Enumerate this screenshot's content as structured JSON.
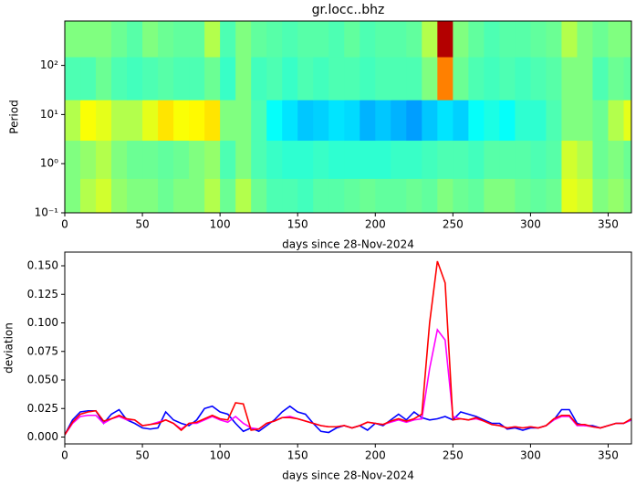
{
  "chart_data": [
    {
      "type": "heatmap",
      "title": "gr.locc..bhz",
      "x_label": "days since 28-Nov-2024",
      "y_label": "Period",
      "colormap": "jet",
      "y_log": true,
      "x_edges": [
        0,
        10,
        20,
        30,
        40,
        50,
        60,
        70,
        80,
        90,
        100,
        110,
        120,
        130,
        140,
        150,
        160,
        170,
        180,
        190,
        200,
        210,
        220,
        230,
        240,
        250,
        260,
        270,
        280,
        290,
        300,
        310,
        320,
        330,
        340,
        350,
        360,
        365
      ],
      "y_edges": [
        0.1,
        0.5,
        3,
        20,
        150,
        800
      ],
      "z": [
        [
          0.5,
          0.55,
          0.58,
          0.52,
          0.5,
          0.5,
          0.48,
          0.5,
          0.5,
          0.55,
          0.48,
          0.55,
          0.48,
          0.45,
          0.45,
          0.44,
          0.46,
          0.46,
          0.47,
          0.48,
          0.47,
          0.47,
          0.48,
          0.47,
          0.5,
          0.48,
          0.47,
          0.5,
          0.5,
          0.48,
          0.47,
          0.48,
          0.6,
          0.58,
          0.5,
          0.52,
          0.5
        ],
        [
          0.5,
          0.52,
          0.55,
          0.5,
          0.48,
          0.48,
          0.47,
          0.48,
          0.5,
          0.52,
          0.45,
          0.5,
          0.45,
          0.43,
          0.42,
          0.42,
          0.43,
          0.42,
          0.42,
          0.42,
          0.42,
          0.43,
          0.43,
          0.44,
          0.45,
          0.45,
          0.44,
          0.46,
          0.46,
          0.46,
          0.45,
          0.46,
          0.58,
          0.55,
          0.48,
          0.5,
          0.48
        ],
        [
          0.55,
          0.62,
          0.6,
          0.55,
          0.55,
          0.6,
          0.65,
          0.62,
          0.63,
          0.65,
          0.5,
          0.5,
          0.45,
          0.38,
          0.35,
          0.32,
          0.33,
          0.35,
          0.34,
          0.3,
          0.32,
          0.3,
          0.28,
          0.32,
          0.35,
          0.33,
          0.38,
          0.4,
          0.38,
          0.42,
          0.42,
          0.45,
          0.5,
          0.5,
          0.48,
          0.55,
          0.6
        ],
        [
          0.45,
          0.45,
          0.48,
          0.45,
          0.44,
          0.45,
          0.46,
          0.45,
          0.45,
          0.48,
          0.43,
          0.5,
          0.44,
          0.45,
          0.43,
          0.45,
          0.44,
          0.45,
          0.45,
          0.44,
          0.45,
          0.45,
          0.45,
          0.5,
          0.75,
          0.48,
          0.45,
          0.44,
          0.45,
          0.44,
          0.45,
          0.46,
          0.5,
          0.5,
          0.45,
          0.48,
          0.47
        ],
        [
          0.5,
          0.5,
          0.5,
          0.48,
          0.46,
          0.5,
          0.48,
          0.47,
          0.47,
          0.55,
          0.45,
          0.5,
          0.47,
          0.46,
          0.45,
          0.46,
          0.46,
          0.45,
          0.47,
          0.45,
          0.46,
          0.46,
          0.47,
          0.55,
          0.95,
          0.5,
          0.47,
          0.45,
          0.46,
          0.46,
          0.47,
          0.48,
          0.55,
          0.5,
          0.48,
          0.5,
          0.5
        ]
      ],
      "xlim": [
        0,
        365
      ],
      "xticks": [
        0,
        50,
        100,
        150,
        200,
        250,
        300,
        350
      ],
      "ylim": [
        0.1,
        800
      ],
      "yticks": [
        {
          "value": 0.1,
          "label": "10⁻¹"
        },
        {
          "value": 1,
          "label": "10⁰"
        },
        {
          "value": 10,
          "label": "10¹"
        },
        {
          "value": 100,
          "label": "10²"
        }
      ]
    },
    {
      "type": "line",
      "x_label": "days since 28-Nov-2024",
      "y_label": "deviation",
      "x": [
        0,
        5,
        10,
        15,
        20,
        25,
        30,
        35,
        40,
        45,
        50,
        55,
        60,
        65,
        70,
        75,
        80,
        85,
        90,
        95,
        100,
        105,
        110,
        115,
        120,
        125,
        130,
        135,
        140,
        145,
        150,
        155,
        160,
        165,
        170,
        175,
        180,
        185,
        190,
        195,
        200,
        205,
        210,
        215,
        220,
        225,
        230,
        235,
        240,
        245,
        250,
        255,
        260,
        265,
        270,
        275,
        280,
        285,
        290,
        295,
        300,
        305,
        310,
        315,
        320,
        325,
        330,
        335,
        340,
        345,
        350,
        355,
        360,
        365
      ],
      "series": [
        {
          "color": "#0000ff",
          "values": [
            0.002,
            0.015,
            0.022,
            0.023,
            0.023,
            0.012,
            0.02,
            0.024,
            0.015,
            0.012,
            0.008,
            0.007,
            0.008,
            0.022,
            0.015,
            0.012,
            0.01,
            0.015,
            0.025,
            0.027,
            0.022,
            0.02,
            0.012,
            0.005,
            0.008,
            0.005,
            0.01,
            0.015,
            0.022,
            0.027,
            0.022,
            0.02,
            0.012,
            0.005,
            0.004,
            0.008,
            0.01,
            0.008,
            0.01,
            0.006,
            0.012,
            0.01,
            0.015,
            0.02,
            0.015,
            0.022,
            0.017,
            0.015,
            0.016,
            0.018,
            0.015,
            0.022,
            0.02,
            0.018,
            0.015,
            0.012,
            0.012,
            0.007,
            0.008,
            0.006,
            0.008,
            0.008,
            0.01,
            0.015,
            0.024,
            0.024,
            0.012,
            0.01,
            0.01,
            0.008,
            0.01,
            0.012,
            0.012,
            0.015
          ]
        },
        {
          "color": "#ff00ff",
          "values": [
            0.002,
            0.012,
            0.018,
            0.019,
            0.019,
            0.012,
            0.016,
            0.018,
            0.015,
            0.015,
            0.01,
            0.011,
            0.013,
            0.015,
            0.012,
            0.007,
            0.012,
            0.012,
            0.015,
            0.018,
            0.015,
            0.013,
            0.018,
            0.012,
            0.008,
            0.007,
            0.012,
            0.014,
            0.017,
            0.018,
            0.016,
            0.014,
            0.012,
            0.01,
            0.009,
            0.009,
            0.01,
            0.008,
            0.01,
            0.013,
            0.012,
            0.011,
            0.013,
            0.015,
            0.013,
            0.015,
            0.016,
            0.06,
            0.094,
            0.085,
            0.018,
            0.016,
            0.015,
            0.016,
            0.014,
            0.011,
            0.01,
            0.008,
            0.009,
            0.008,
            0.009,
            0.008,
            0.01,
            0.015,
            0.018,
            0.018,
            0.01,
            0.01,
            0.009,
            0.008,
            0.01,
            0.012,
            0.012,
            0.015
          ]
        },
        {
          "color": "#ff0000",
          "values": [
            0.002,
            0.013,
            0.02,
            0.022,
            0.023,
            0.014,
            0.016,
            0.019,
            0.016,
            0.015,
            0.01,
            0.011,
            0.012,
            0.015,
            0.012,
            0.006,
            0.012,
            0.013,
            0.016,
            0.019,
            0.016,
            0.015,
            0.03,
            0.029,
            0.006,
            0.007,
            0.012,
            0.014,
            0.017,
            0.017,
            0.016,
            0.014,
            0.012,
            0.01,
            0.009,
            0.009,
            0.01,
            0.008,
            0.01,
            0.013,
            0.012,
            0.011,
            0.014,
            0.016,
            0.014,
            0.016,
            0.02,
            0.1,
            0.154,
            0.135,
            0.015,
            0.016,
            0.015,
            0.017,
            0.014,
            0.011,
            0.01,
            0.008,
            0.009,
            0.008,
            0.009,
            0.008,
            0.01,
            0.016,
            0.019,
            0.019,
            0.011,
            0.011,
            0.009,
            0.008,
            0.01,
            0.012,
            0.012,
            0.016
          ]
        }
      ],
      "xlim": [
        0,
        365
      ],
      "xticks": [
        0,
        50,
        100,
        150,
        200,
        250,
        300,
        350
      ],
      "ylim": [
        -0.006,
        0.162
      ],
      "yticks": [
        {
          "value": 0,
          "label": "0.000"
        },
        {
          "value": 0.025,
          "label": "0.025"
        },
        {
          "value": 0.05,
          "label": "0.050"
        },
        {
          "value": 0.075,
          "label": "0.075"
        },
        {
          "value": 0.1,
          "label": "0.100"
        },
        {
          "value": 0.125,
          "label": "0.125"
        },
        {
          "value": 0.15,
          "label": "0.150"
        }
      ]
    }
  ]
}
